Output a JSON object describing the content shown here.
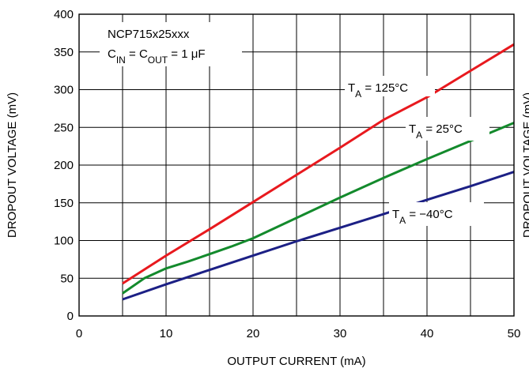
{
  "chart_data": {
    "type": "line",
    "title": "",
    "xlabel": "OUTPUT CURRENT (mA)",
    "ylabel": "DROPOUT VOLTAGE (mV)",
    "right_ylabel_partial": "DROPOUT VOLTAGE (mV)",
    "xlim": [
      0,
      50
    ],
    "ylim": [
      0,
      400
    ],
    "x_ticks": [
      0,
      10,
      20,
      30,
      40,
      50
    ],
    "y_ticks": [
      0,
      50,
      100,
      150,
      200,
      250,
      300,
      350,
      400
    ],
    "x_grid_step": 5,
    "grid": true,
    "annotation": {
      "line1": "NCP715x25xxx",
      "line2_pre": "C",
      "line2_sub1": "IN",
      "line2_mid": " = C",
      "line2_sub2": "OUT",
      "line2_post": " = 1 μF"
    },
    "series": [
      {
        "label_pre": "T",
        "label_sub": "A",
        "label_post": " = 125°C",
        "color": "#e8191e",
        "x": [
          5,
          10,
          15,
          20,
          25,
          30,
          35,
          40,
          45,
          50
        ],
        "y": [
          43,
          80,
          115,
          151,
          187,
          223,
          260,
          290,
          325,
          360
        ]
      },
      {
        "label_pre": "T",
        "label_sub": "A",
        "label_post": " = 25°C",
        "color": "#138a2c",
        "x": [
          5,
          7.5,
          10,
          12.5,
          15,
          17.5,
          20,
          25,
          30,
          35,
          40,
          45,
          50
        ],
        "y": [
          30,
          50,
          63,
          72,
          82,
          92,
          103,
          130,
          157,
          183,
          208,
          232,
          256
        ]
      },
      {
        "label_pre": "T",
        "label_sub": "A",
        "label_post": " = −40°C",
        "color": "#1c2085",
        "x": [
          5,
          10,
          15,
          20,
          25,
          30,
          35,
          40,
          45,
          50
        ],
        "y": [
          22,
          42,
          61,
          80,
          99,
          117,
          135,
          154,
          172,
          191
        ]
      }
    ]
  }
}
